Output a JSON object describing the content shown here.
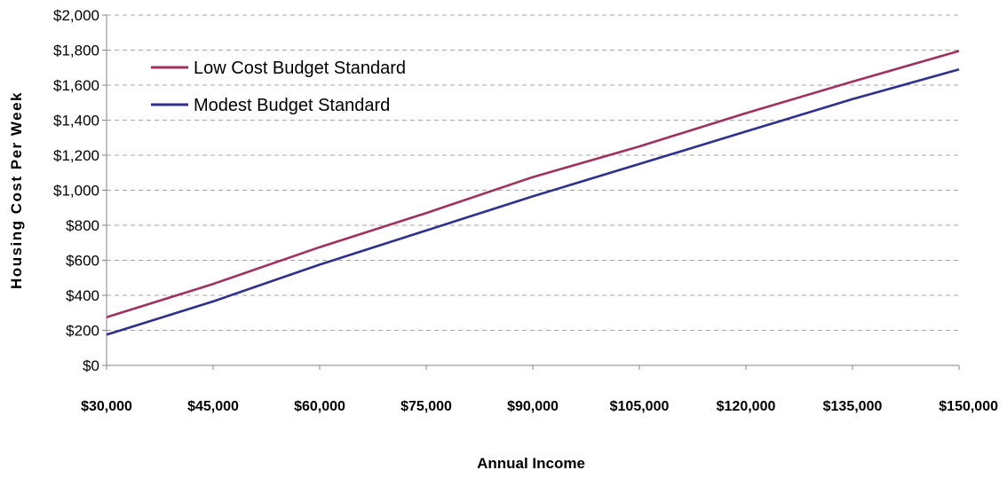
{
  "chart_data": {
    "type": "line",
    "title": "",
    "xlabel": "Annual Income",
    "ylabel": "Housing Cost Per Week",
    "xlim": [
      30000,
      150000
    ],
    "ylim": [
      0,
      2000
    ],
    "x_ticks": [
      "$30,000",
      "$45,000",
      "$60,000",
      "$75,000",
      "$90,000",
      "$105,000",
      "$120,000",
      "$135,000",
      "$150,000"
    ],
    "y_ticks": [
      "$0",
      "$200",
      "$400",
      "$600",
      "$800",
      "$1,000",
      "$1,200",
      "$1,400",
      "$1,600",
      "$1,800",
      "$2,000"
    ],
    "grid": "horizontal dashed",
    "legend_position": "top-left",
    "x": [
      30000,
      45000,
      60000,
      75000,
      90000,
      105000,
      120000,
      135000,
      150000
    ],
    "series": [
      {
        "name": "Low Cost Budget Standard",
        "color": "#a0305c",
        "values": [
          275,
          465,
          675,
          870,
          1075,
          1250,
          1440,
          1620,
          1795
        ]
      },
      {
        "name": "Modest Budget Standard",
        "color": "#2e2f8f",
        "values": [
          175,
          365,
          575,
          770,
          965,
          1150,
          1335,
          1520,
          1690
        ]
      }
    ]
  }
}
